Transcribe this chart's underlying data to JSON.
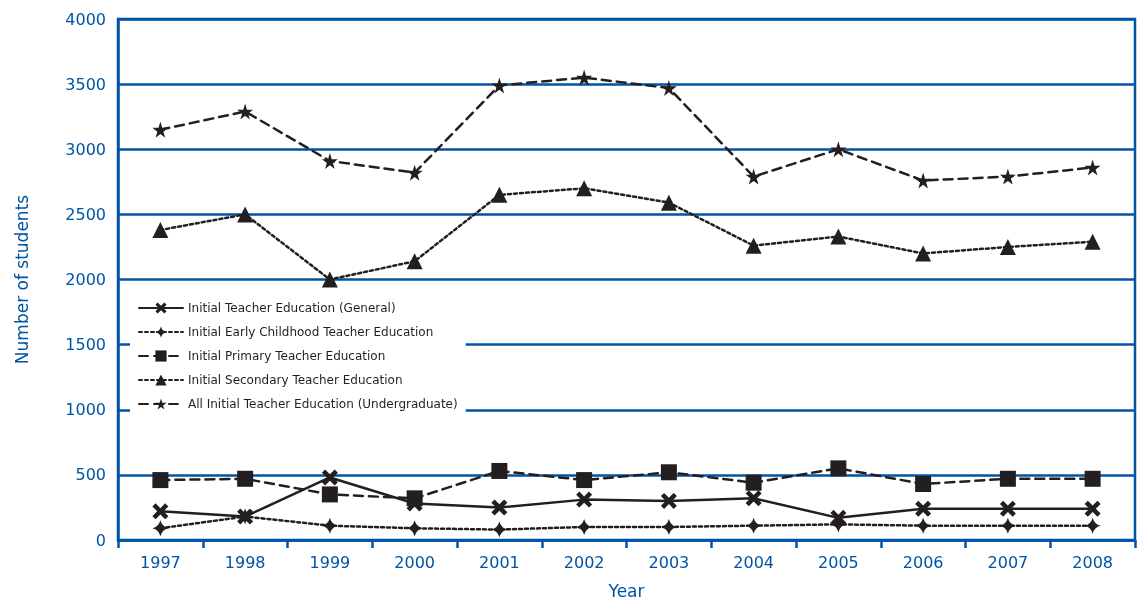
{
  "chart_data": {
    "type": "line",
    "xlabel": "Year",
    "ylabel": "Number of students",
    "categories": [
      "1997",
      "1998",
      "1999",
      "2000",
      "2001",
      "2002",
      "2003",
      "2004",
      "2005",
      "2006",
      "2007",
      "2008"
    ],
    "series": [
      {
        "name": "Initial Teacher Education (General)",
        "color": "#231f20",
        "marker": "cross",
        "line_style": "solid",
        "values": [
          220,
          180,
          480,
          280,
          250,
          310,
          300,
          320,
          170,
          240,
          240,
          240
        ]
      },
      {
        "name": "Initial Early Childhood Teacher Education",
        "color": "#231f20",
        "marker": "diamond",
        "line_style": "dotted",
        "values": [
          90,
          180,
          110,
          90,
          80,
          100,
          100,
          110,
          120,
          110,
          110,
          110
        ]
      },
      {
        "name": "Initial Primary Teacher Education",
        "color": "#231f20",
        "marker": "square",
        "line_style": "dashed",
        "values": [
          460,
          470,
          350,
          320,
          530,
          460,
          520,
          440,
          550,
          430,
          470,
          470
        ]
      },
      {
        "name": "Initial Secondary Teacher Education",
        "color": "#231f20",
        "marker": "triangle",
        "line_style": "dotted",
        "values": [
          2380,
          2500,
          2000,
          2140,
          2650,
          2700,
          2590,
          2260,
          2330,
          2200,
          2250,
          2290
        ]
      },
      {
        "name": "All Initial Teacher Education (Undergraduate)",
        "color": "#231f20",
        "marker": "star",
        "line_style": "dashed",
        "values": [
          3150,
          3290,
          2910,
          2820,
          3490,
          3550,
          3470,
          2790,
          3000,
          2760,
          2790,
          2860
        ]
      }
    ],
    "ylim": [
      0,
      4000
    ],
    "yticks": [
      0,
      500,
      1000,
      1500,
      2000,
      2500,
      3000,
      3500,
      4000
    ],
    "grid": "y",
    "legend": "left"
  }
}
